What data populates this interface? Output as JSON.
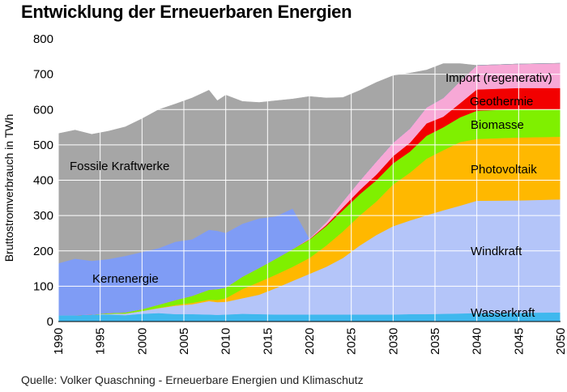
{
  "title": "Entwicklung der Erneuerbaren Energien",
  "source": "Quelle: Volker Quaschning - Erneuerbare Energien und Klimaschutz",
  "colors": {
    "fossil": "#a6a6a6",
    "nuclear": "#7f9cf5",
    "hydro": "#3fb8ee",
    "wind": "#b4c5f9",
    "pv": "#ffb800",
    "biomass": "#7ff000",
    "geothermal": "#f20000",
    "import": "#f7a8d6",
    "grid": "#ffffff"
  },
  "chart_data": {
    "type": "area",
    "title": "Entwicklung der Erneuerbaren Energien",
    "ylabel": "Bruttostromverbrauch in TWh",
    "xlabel": "",
    "xlim": [
      1990,
      2050
    ],
    "ylim": [
      0,
      800
    ],
    "x_ticks": [
      "1990",
      "1995",
      "2000",
      "2005",
      "2010",
      "2015",
      "2020",
      "2025",
      "2030",
      "2035",
      "2040",
      "2045",
      "2050"
    ],
    "y_ticks": [
      "0",
      "100",
      "200",
      "300",
      "400",
      "500",
      "600",
      "700",
      "800"
    ],
    "grid": true,
    "stacking": "stacked",
    "x": [
      1990,
      1992,
      1994,
      1996,
      1998,
      2000,
      2002,
      2004,
      2006,
      2008,
      2009,
      2010,
      2012,
      2014,
      2016,
      2018,
      2020,
      2022,
      2024,
      2026,
      2028,
      2030,
      2032,
      2034,
      2036,
      2038,
      2040,
      2045,
      2050
    ],
    "series": [
      {
        "name": "Wasserkraft",
        "color_key": "hydro",
        "values": [
          18,
          18,
          20,
          20,
          18,
          22,
          24,
          21,
          21,
          20,
          19,
          20,
          22,
          21,
          20,
          20,
          20,
          20,
          20,
          20,
          20,
          20,
          21,
          21,
          22,
          23,
          24,
          25,
          26
        ]
      },
      {
        "name": "Windkraft",
        "color_key": "wind",
        "values": [
          0,
          0,
          0,
          2,
          5,
          8,
          14,
          24,
          28,
          38,
          36,
          36,
          44,
          55,
          75,
          95,
          115,
          135,
          160,
          195,
          225,
          250,
          265,
          280,
          293,
          305,
          318,
          318,
          320
        ]
      },
      {
        "name": "Photovoltaik",
        "color_key": "pv",
        "values": [
          0,
          0,
          0,
          0,
          0,
          0,
          1,
          2,
          4,
          4,
          6,
          10,
          26,
          36,
          38,
          40,
          45,
          60,
          75,
          85,
          95,
          118,
          135,
          160,
          170,
          180,
          175,
          178,
          177
        ]
      },
      {
        "name": "Biomasse",
        "color_key": "biomass",
        "values": [
          0,
          0,
          0,
          2,
          3,
          5,
          9,
          14,
          20,
          28,
          31,
          30,
          35,
          40,
          45,
          50,
          52,
          55,
          60,
          60,
          60,
          60,
          60,
          65,
          65,
          70,
          80,
          80,
          78
        ]
      },
      {
        "name": "Geothermie",
        "color_key": "geothermal",
        "values": [
          0,
          0,
          0,
          0,
          0,
          0,
          0,
          0,
          0,
          0,
          0,
          0,
          0,
          0,
          0,
          0,
          1,
          3,
          8,
          12,
          16,
          20,
          25,
          35,
          30,
          40,
          60,
          60,
          60
        ]
      },
      {
        "name": "Import (regenerativ)",
        "color_key": "import",
        "values": [
          0,
          0,
          0,
          0,
          0,
          0,
          0,
          0,
          0,
          0,
          0,
          0,
          0,
          0,
          0,
          0,
          2,
          8,
          17,
          26,
          37,
          38,
          40,
          45,
          53,
          62,
          68,
          68,
          70
        ]
      },
      {
        "name": "Kernenergie",
        "color_key": "nuclear",
        "values": [
          147,
          160,
          152,
          153,
          160,
          162,
          160,
          165,
          160,
          170,
          165,
          155,
          150,
          140,
          120,
          115,
          0,
          0,
          0,
          0,
          0,
          0,
          0,
          0,
          0,
          0,
          0,
          0,
          0
        ]
      },
      {
        "name": "Fossile Kraftwerke",
        "color_key": "fossil",
        "values": [
          367,
          364,
          358,
          362,
          365,
          377,
          392,
          390,
          400,
          395,
          368,
          390,
          346,
          328,
          327,
          310,
          402,
          352,
          294,
          256,
          224,
          190,
          157,
          106,
          97,
          50,
          0,
          0,
          0
        ]
      }
    ]
  }
}
